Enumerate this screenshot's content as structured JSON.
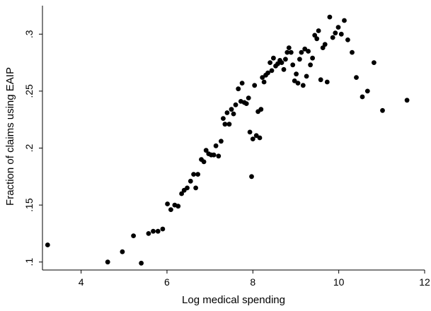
{
  "chart_data": {
    "type": "scatter",
    "title": "",
    "xlabel": "Log medical spending",
    "ylabel": "Fraction of claims using EAIP",
    "xlim": [
      3.1,
      12.0
    ],
    "ylim": [
      0.093,
      0.325
    ],
    "xticks": [
      4,
      6,
      8,
      10,
      12
    ],
    "xtick_labels": [
      "4",
      "6",
      "8",
      "10",
      "12"
    ],
    "yticks": [
      0.1,
      0.15,
      0.2,
      0.25,
      0.3
    ],
    "ytick_labels": [
      ".1",
      ".15",
      ".2",
      ".25",
      ".3"
    ],
    "grid": false,
    "marker_color": "#000000",
    "points": [
      [
        3.22,
        0.115
      ],
      [
        4.62,
        0.1
      ],
      [
        4.96,
        0.109
      ],
      [
        5.22,
        0.123
      ],
      [
        5.4,
        0.099
      ],
      [
        5.57,
        0.125
      ],
      [
        5.68,
        0.127
      ],
      [
        5.79,
        0.127
      ],
      [
        5.9,
        0.129
      ],
      [
        6.01,
        0.151
      ],
      [
        6.09,
        0.146
      ],
      [
        6.18,
        0.15
      ],
      [
        6.26,
        0.149
      ],
      [
        6.34,
        0.16
      ],
      [
        6.4,
        0.163
      ],
      [
        6.47,
        0.165
      ],
      [
        6.55,
        0.171
      ],
      [
        6.62,
        0.177
      ],
      [
        6.67,
        0.165
      ],
      [
        6.72,
        0.177
      ],
      [
        6.8,
        0.19
      ],
      [
        6.86,
        0.188
      ],
      [
        6.91,
        0.198
      ],
      [
        6.97,
        0.195
      ],
      [
        7.03,
        0.194
      ],
      [
        7.09,
        0.194
      ],
      [
        7.14,
        0.202
      ],
      [
        7.2,
        0.193
      ],
      [
        7.26,
        0.206
      ],
      [
        7.31,
        0.226
      ],
      [
        7.35,
        0.221
      ],
      [
        7.4,
        0.231
      ],
      [
        7.45,
        0.221
      ],
      [
        7.5,
        0.234
      ],
      [
        7.55,
        0.23
      ],
      [
        7.6,
        0.238
      ],
      [
        7.66,
        0.252
      ],
      [
        7.72,
        0.241
      ],
      [
        7.75,
        0.257
      ],
      [
        7.8,
        0.24
      ],
      [
        7.85,
        0.239
      ],
      [
        7.9,
        0.244
      ],
      [
        7.93,
        0.214
      ],
      [
        7.97,
        0.175
      ],
      [
        8.0,
        0.208
      ],
      [
        8.04,
        0.255
      ],
      [
        8.08,
        0.211
      ],
      [
        8.12,
        0.232
      ],
      [
        8.16,
        0.209
      ],
      [
        8.19,
        0.234
      ],
      [
        8.22,
        0.262
      ],
      [
        8.26,
        0.258
      ],
      [
        8.3,
        0.264
      ],
      [
        8.35,
        0.266
      ],
      [
        8.4,
        0.275
      ],
      [
        8.44,
        0.268
      ],
      [
        8.48,
        0.279
      ],
      [
        8.53,
        0.272
      ],
      [
        8.58,
        0.274
      ],
      [
        8.63,
        0.277
      ],
      [
        8.67,
        0.275
      ],
      [
        8.72,
        0.269
      ],
      [
        8.76,
        0.278
      ],
      [
        8.8,
        0.284
      ],
      [
        8.84,
        0.288
      ],
      [
        8.89,
        0.284
      ],
      [
        8.93,
        0.273
      ],
      [
        8.97,
        0.259
      ],
      [
        9.01,
        0.265
      ],
      [
        9.05,
        0.257
      ],
      [
        9.09,
        0.278
      ],
      [
        9.13,
        0.284
      ],
      [
        9.17,
        0.255
      ],
      [
        9.21,
        0.287
      ],
      [
        9.25,
        0.263
      ],
      [
        9.29,
        0.285
      ],
      [
        9.34,
        0.273
      ],
      [
        9.39,
        0.279
      ],
      [
        9.44,
        0.299
      ],
      [
        9.49,
        0.296
      ],
      [
        9.53,
        0.303
      ],
      [
        9.58,
        0.26
      ],
      [
        9.63,
        0.288
      ],
      [
        9.68,
        0.291
      ],
      [
        9.73,
        0.258
      ],
      [
        9.79,
        0.315
      ],
      [
        9.86,
        0.297
      ],
      [
        9.92,
        0.301
      ],
      [
        9.99,
        0.306
      ],
      [
        10.06,
        0.3
      ],
      [
        10.13,
        0.312
      ],
      [
        10.21,
        0.295
      ],
      [
        10.31,
        0.284
      ],
      [
        10.41,
        0.262
      ],
      [
        10.55,
        0.245
      ],
      [
        10.67,
        0.25
      ],
      [
        10.82,
        0.275
      ],
      [
        11.02,
        0.233
      ],
      [
        11.59,
        0.242
      ]
    ]
  }
}
